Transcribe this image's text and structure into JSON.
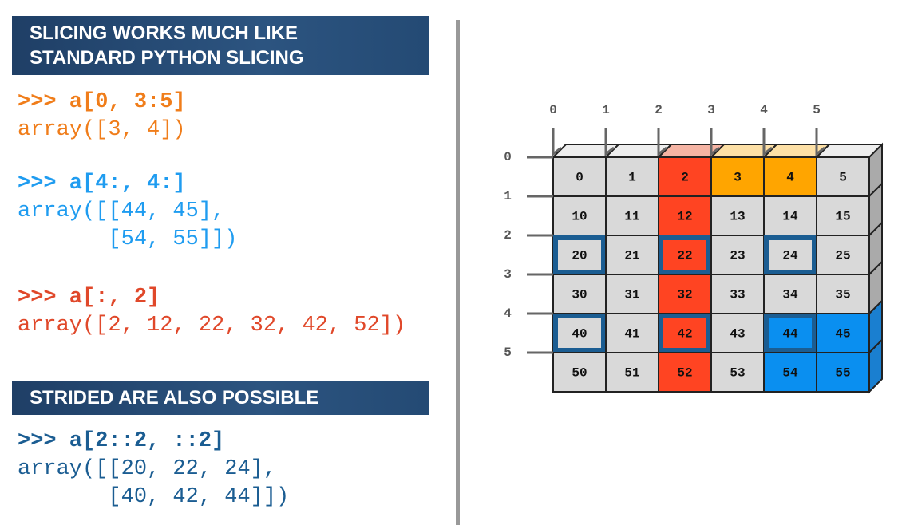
{
  "left": {
    "sections": [
      {
        "heading": [
          "SLICING WORKS MUCH LIKE",
          "STANDARD PYTHON SLICING"
        ],
        "blocks": [
          {
            "color": "#f07d1a",
            "prompt": ">>> a[0, 3:5]",
            "output": [
              "array([3, 4])"
            ]
          },
          {
            "color": "#1f9cf0",
            "prompt": ">>> a[4:, 4:]",
            "output": [
              "array([[44, 45],",
              "       [54, 55]])"
            ]
          },
          {
            "color": "#e0482a",
            "prompt": ">>> a[:, 2]",
            "output": [
              "array([2, 12, 22, 32, 42, 52])"
            ]
          }
        ]
      },
      {
        "heading": [
          "STRIDED ARE ALSO POSSIBLE"
        ],
        "blocks": [
          {
            "color": "#1b5d92",
            "prompt": ">>> a[2::2, ::2]",
            "output": [
              "array([[20, 22, 24],",
              "       [40, 42, 44]])"
            ]
          }
        ]
      }
    ]
  },
  "grid": {
    "col_labels": [
      "0",
      "1",
      "2",
      "3",
      "4",
      "5"
    ],
    "row_labels": [
      "0",
      "1",
      "2",
      "3",
      "4",
      "5"
    ],
    "rows": [
      [
        "0",
        "1",
        "2",
        "3",
        "4",
        "5"
      ],
      [
        "10",
        "11",
        "12",
        "13",
        "14",
        "15"
      ],
      [
        "20",
        "21",
        "22",
        "23",
        "24",
        "25"
      ],
      [
        "30",
        "31",
        "32",
        "33",
        "34",
        "35"
      ],
      [
        "40",
        "41",
        "42",
        "43",
        "44",
        "45"
      ],
      [
        "50",
        "51",
        "52",
        "53",
        "54",
        "55"
      ]
    ],
    "fills": [
      [
        "#d9d9d9",
        "#d9d9d9",
        "#ff4422",
        "#ffa500",
        "#ffa500",
        "#d9d9d9"
      ],
      [
        "#d9d9d9",
        "#d9d9d9",
        "#ff4422",
        "#d9d9d9",
        "#d9d9d9",
        "#d9d9d9"
      ],
      [
        "#d9d9d9",
        "#d9d9d9",
        "#ff4422",
        "#d9d9d9",
        "#d9d9d9",
        "#d9d9d9"
      ],
      [
        "#d9d9d9",
        "#d9d9d9",
        "#ff4422",
        "#d9d9d9",
        "#d9d9d9",
        "#d9d9d9"
      ],
      [
        "#d9d9d9",
        "#d9d9d9",
        "#ff4422",
        "#d9d9d9",
        "#0a8ff0",
        "#0a8ff0"
      ],
      [
        "#d9d9d9",
        "#d9d9d9",
        "#ff4422",
        "#d9d9d9",
        "#0a8ff0",
        "#0a8ff0"
      ]
    ],
    "outlined": [
      [
        false,
        false,
        false,
        false,
        false,
        false
      ],
      [
        false,
        false,
        false,
        false,
        false,
        false
      ],
      [
        true,
        false,
        true,
        false,
        true,
        false
      ],
      [
        false,
        false,
        false,
        false,
        false,
        false
      ],
      [
        true,
        false,
        true,
        false,
        true,
        false
      ],
      [
        false,
        false,
        false,
        false,
        false,
        false
      ]
    ],
    "top_fills": [
      "#eeeeee",
      "#eeeeee",
      "#f5b4a4",
      "#fde0a6",
      "#fde0a6",
      "#eeeeee"
    ],
    "side_fills": [
      "#aaaaaa",
      "#aaaaaa",
      "#aaaaaa",
      "#aaaaaa",
      "#1a7fd0",
      "#1a7fd0"
    ]
  }
}
